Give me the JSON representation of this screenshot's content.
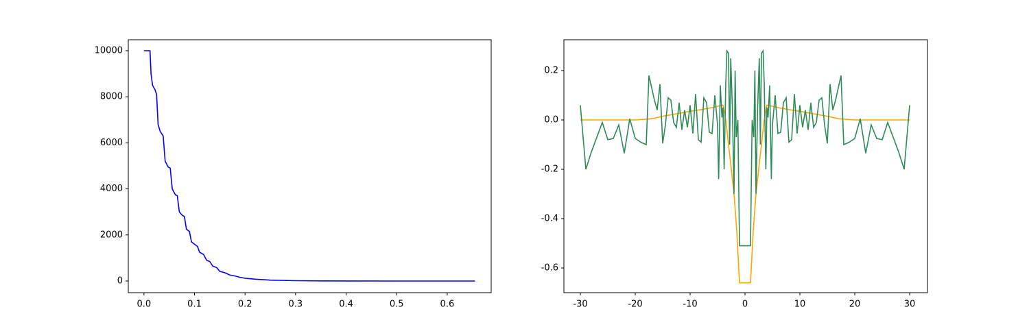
{
  "chart_data": [
    {
      "type": "line",
      "xlim": [
        -0.031,
        0.687
      ],
      "ylim": [
        -506,
        10476
      ],
      "xticks": [
        {
          "value": 0,
          "label": "0.0"
        },
        0.1,
        0.2,
        0.3,
        0.4,
        0.5,
        0.6
      ],
      "yticks": [
        0,
        2000,
        4000,
        6000,
        8000,
        10000
      ],
      "series": [
        {
          "color": "#0000ff",
          "x": [
            0.0,
            0.012,
            0.014,
            0.017,
            0.022,
            0.025,
            0.028,
            0.032,
            0.038,
            0.042,
            0.048,
            0.052,
            0.056,
            0.062,
            0.066,
            0.07,
            0.076,
            0.08,
            0.084,
            0.09,
            0.094,
            0.1,
            0.106,
            0.11,
            0.118,
            0.124,
            0.13,
            0.136,
            0.144,
            0.15,
            0.16,
            0.17,
            0.18,
            0.19,
            0.2,
            0.22,
            0.25,
            0.3,
            0.35,
            0.4,
            0.5,
            0.655
          ],
          "values": [
            10000,
            10000,
            9000,
            8500,
            8300,
            8100,
            6800,
            6500,
            6300,
            5200,
            4950,
            4900,
            4000,
            3750,
            3700,
            3000,
            2850,
            2800,
            2250,
            2150,
            1700,
            1600,
            1500,
            1250,
            1150,
            900,
            850,
            650,
            580,
            420,
            360,
            260,
            220,
            160,
            120,
            80,
            40,
            15,
            5,
            2,
            0,
            0
          ]
        }
      ]
    },
    {
      "type": "line",
      "xlim": [
        -33,
        33.25
      ],
      "ylim": [
        -0.7,
        0.325
      ],
      "xticks": [
        -30,
        -20,
        -10,
        0,
        10,
        20,
        30
      ],
      "yticks": [
        -0.6,
        -0.4,
        -0.2,
        {
          "value": 0,
          "label": "0.0"
        },
        0.2
      ],
      "series": [
        {
          "color": "#ffa500",
          "x": [
            -30,
            -20,
            -17,
            -15,
            -12,
            -10,
            -8,
            -6,
            -4.5,
            -4,
            -3.5,
            -3,
            -2.5,
            -2,
            -1.5,
            -1,
            1,
            1.5,
            2,
            2.5,
            3,
            3.5,
            4,
            4.5,
            6,
            8,
            10,
            12,
            15,
            17,
            20,
            30
          ],
          "values": [
            0,
            0,
            0.005,
            0.015,
            0.027,
            0.035,
            0.042,
            0.05,
            0.058,
            0.06,
            0.0,
            -0.1,
            -0.2,
            -0.3,
            -0.45,
            -0.66,
            -0.66,
            -0.45,
            -0.3,
            -0.2,
            -0.1,
            0.0,
            0.06,
            0.058,
            0.05,
            0.042,
            0.035,
            0.027,
            0.015,
            0.005,
            0,
            0
          ]
        },
        {
          "color": "#2e8b57",
          "x": [
            -30,
            -29,
            -28,
            -27,
            -26,
            -25,
            -24,
            -23,
            -22,
            -21,
            -20,
            -19,
            -18,
            -17.5,
            -16.5,
            -16,
            -15.5,
            -15,
            -14.5,
            -14,
            -13.5,
            -13,
            -12.5,
            -12,
            -11.5,
            -11,
            -10.5,
            -10,
            -9.5,
            -9,
            -8.5,
            -8,
            -7.5,
            -7,
            -6.5,
            -6,
            -5.5,
            -5,
            -4.8,
            -4.5,
            -4.2,
            -4,
            -3.8,
            -3.5,
            -3.3,
            -3,
            -2.8,
            -2.6,
            -2.3,
            -2,
            -1.8,
            -1.6,
            -1.3,
            -1,
            1,
            1.3,
            1.6,
            1.8,
            2,
            2.3,
            2.6,
            2.8,
            3,
            3.3,
            3.5,
            3.8,
            4,
            4.2,
            4.5,
            4.8,
            5,
            5.5,
            6,
            6.5,
            7,
            7.5,
            8,
            8.5,
            9,
            9.5,
            10,
            10.5,
            11,
            11.5,
            12,
            12.5,
            13,
            13.5,
            14,
            14.5,
            15,
            15.5,
            16,
            16.5,
            17.5,
            18,
            19,
            20,
            21,
            22,
            23,
            24,
            25,
            26,
            27,
            28,
            29,
            30
          ],
          "values": [
            0.06,
            -0.2,
            -0.13,
            -0.07,
            -0.01,
            -0.08,
            -0.075,
            -0.02,
            -0.135,
            0.005,
            -0.075,
            -0.09,
            -0.1,
            0.18,
            0.08,
            0.04,
            0.145,
            -0.095,
            -0.02,
            0.09,
            0.08,
            -0.01,
            -0.03,
            0.07,
            -0.04,
            0.04,
            -0.03,
            0.06,
            -0.055,
            0.105,
            -0.08,
            -0.09,
            0.09,
            0.07,
            -0.05,
            -0.055,
            0.1,
            -0.02,
            -0.24,
            0.14,
            0.01,
            0.05,
            -0.2,
            0.15,
            0.28,
            0.27,
            -0.1,
            0.25,
            0.05,
            -0.3,
            0.2,
            -0.07,
            0.0,
            -0.51,
            -0.51,
            0.0,
            -0.07,
            0.2,
            -0.3,
            0.05,
            0.25,
            -0.1,
            0.27,
            0.28,
            0.15,
            -0.2,
            0.05,
            0.01,
            0.14,
            -0.24,
            -0.02,
            0.1,
            -0.055,
            -0.05,
            0.07,
            0.09,
            -0.09,
            -0.08,
            0.105,
            -0.055,
            0.06,
            -0.03,
            0.04,
            -0.04,
            0.07,
            -0.03,
            -0.01,
            0.08,
            0.09,
            -0.02,
            -0.095,
            0.145,
            0.04,
            0.08,
            0.18,
            -0.1,
            -0.09,
            -0.075,
            0.005,
            -0.135,
            -0.02,
            -0.075,
            -0.08,
            -0.01,
            -0.07,
            -0.13,
            -0.2,
            0.06
          ]
        }
      ]
    }
  ]
}
